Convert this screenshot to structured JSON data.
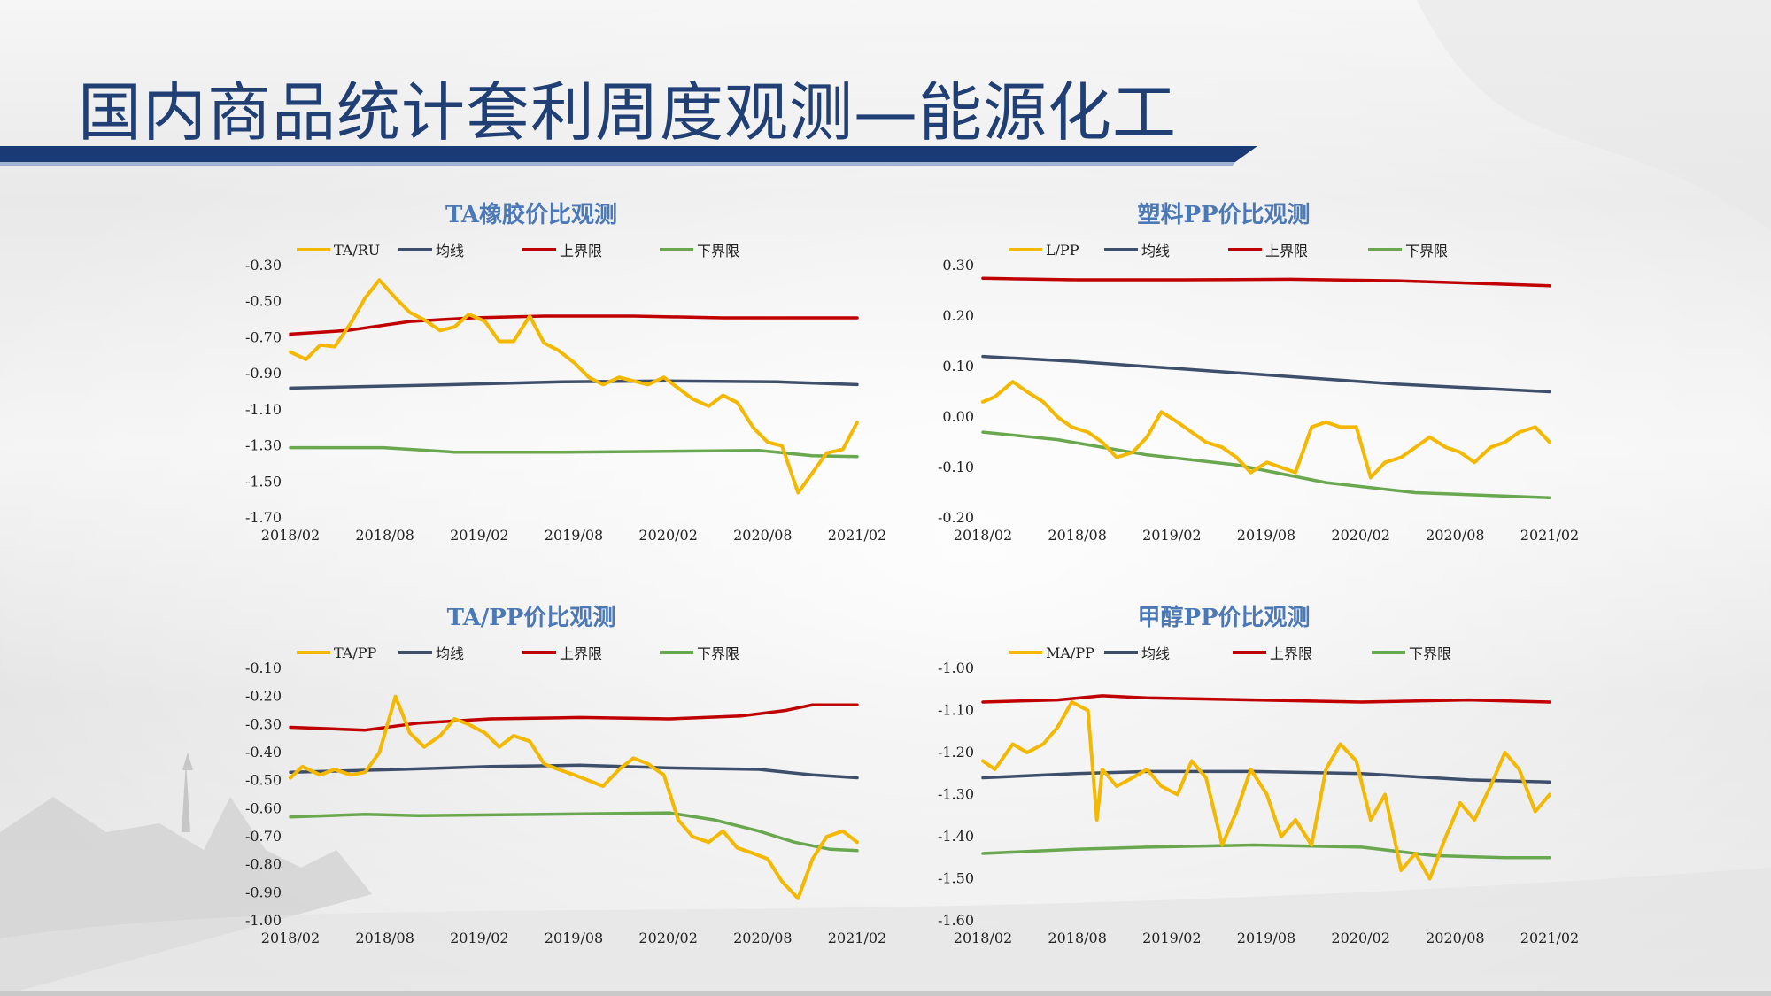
{
  "page": {
    "title": "国内商品统计套利周度观测—能源化工",
    "colors": {
      "title": "#1f3f75",
      "band": "#1a3a75",
      "accent_stripe": "#9fb4d2"
    }
  },
  "legend_colors": {
    "ratio": "#f5b800",
    "mean": "#3d4f6b",
    "upper": "#c00000",
    "lower": "#6aa84f"
  },
  "chart_data": [
    {
      "type": "line",
      "title": "TA橡胶价比观测",
      "x_ticks": [
        "2018/02",
        "2018/08",
        "2019/02",
        "2019/08",
        "2020/02",
        "2020/08",
        "2021/02"
      ],
      "y_ticks": [
        "-0.30",
        "-0.50",
        "-0.70",
        "-0.90",
        "-1.10",
        "-1.30",
        "-1.50",
        "-1.70"
      ],
      "ylim": [
        -1.7,
        -0.3
      ],
      "xlim": [
        2018.083,
        2021.25
      ],
      "series": [
        {
          "name": "TA/RU",
          "role": "ratio",
          "x": [
            2018.083,
            2018.17,
            2018.25,
            2018.33,
            2018.42,
            2018.5,
            2018.58,
            2018.67,
            2018.75,
            2018.83,
            2018.92,
            2019.0,
            2019.08,
            2019.17,
            2019.25,
            2019.33,
            2019.42,
            2019.5,
            2019.58,
            2019.67,
            2019.75,
            2019.83,
            2019.92,
            2020.0,
            2020.08,
            2020.17,
            2020.25,
            2020.33,
            2020.42,
            2020.5,
            2020.58,
            2020.67,
            2020.75,
            2020.83,
            2020.92,
            2021.0,
            2021.08,
            2021.17,
            2021.25
          ],
          "values": [
            -0.78,
            -0.82,
            -0.74,
            -0.75,
            -0.62,
            -0.48,
            -0.38,
            -0.48,
            -0.56,
            -0.6,
            -0.66,
            -0.64,
            -0.57,
            -0.61,
            -0.72,
            -0.72,
            -0.58,
            -0.73,
            -0.77,
            -0.84,
            -0.92,
            -0.96,
            -0.92,
            -0.94,
            -0.96,
            -0.92,
            -0.98,
            -1.04,
            -1.08,
            -1.02,
            -1.06,
            -1.2,
            -1.28,
            -1.3,
            -1.56,
            -1.45,
            -1.34,
            -1.32,
            -1.17
          ]
        },
        {
          "name": "均线",
          "role": "mean",
          "x": [
            2018.083,
            2019.0,
            2019.6,
            2020.2,
            2020.8,
            2021.25
          ],
          "values": [
            -0.98,
            -0.96,
            -0.945,
            -0.94,
            -0.945,
            -0.96
          ]
        },
        {
          "name": "上界限",
          "role": "upper",
          "x": [
            2018.083,
            2018.4,
            2018.75,
            2019.1,
            2019.5,
            2020.0,
            2020.5,
            2021.25
          ],
          "values": [
            -0.68,
            -0.66,
            -0.61,
            -0.59,
            -0.58,
            -0.58,
            -0.59,
            -0.59
          ]
        },
        {
          "name": "下界限",
          "role": "lower",
          "x": [
            2018.083,
            2018.6,
            2019.0,
            2019.6,
            2020.2,
            2020.7,
            2021.0,
            2021.25
          ],
          "values": [
            -1.31,
            -1.31,
            -1.335,
            -1.335,
            -1.33,
            -1.325,
            -1.355,
            -1.36
          ]
        }
      ]
    },
    {
      "type": "line",
      "title": "塑料PP价比观测",
      "x_ticks": [
        "2018/02",
        "2018/08",
        "2019/02",
        "2019/08",
        "2020/02",
        "2020/08",
        "2021/02"
      ],
      "y_ticks": [
        "0.30",
        "0.20",
        "0.10",
        "0.00",
        "-0.10",
        "-0.20"
      ],
      "ylim": [
        -0.2,
        0.3
      ],
      "xlim": [
        2018.083,
        2021.25
      ],
      "series": [
        {
          "name": "L/PP",
          "role": "ratio",
          "x": [
            2018.083,
            2018.15,
            2018.25,
            2018.33,
            2018.42,
            2018.5,
            2018.58,
            2018.67,
            2018.75,
            2018.83,
            2018.92,
            2019.0,
            2019.08,
            2019.17,
            2019.25,
            2019.33,
            2019.42,
            2019.5,
            2019.58,
            2019.67,
            2019.75,
            2019.83,
            2019.92,
            2020.0,
            2020.08,
            2020.17,
            2020.25,
            2020.33,
            2020.42,
            2020.5,
            2020.58,
            2020.67,
            2020.75,
            2020.83,
            2020.92,
            2021.0,
            2021.08,
            2021.17,
            2021.25
          ],
          "values": [
            0.03,
            0.04,
            0.07,
            0.05,
            0.03,
            0.0,
            -0.02,
            -0.03,
            -0.05,
            -0.08,
            -0.07,
            -0.04,
            0.01,
            -0.01,
            -0.03,
            -0.05,
            -0.06,
            -0.08,
            -0.11,
            -0.09,
            -0.1,
            -0.11,
            -0.02,
            -0.01,
            -0.02,
            -0.02,
            -0.12,
            -0.09,
            -0.08,
            -0.06,
            -0.04,
            -0.06,
            -0.07,
            -0.09,
            -0.06,
            -0.05,
            -0.03,
            -0.02,
            -0.05
          ]
        },
        {
          "name": "均线",
          "role": "mean",
          "x": [
            2018.083,
            2018.6,
            2019.2,
            2019.8,
            2020.4,
            2021.25
          ],
          "values": [
            0.12,
            0.11,
            0.095,
            0.08,
            0.065,
            0.05
          ]
        },
        {
          "name": "上界限",
          "role": "upper",
          "x": [
            2018.083,
            2018.6,
            2019.2,
            2019.8,
            2020.4,
            2021.25
          ],
          "values": [
            0.275,
            0.272,
            0.272,
            0.273,
            0.27,
            0.26
          ]
        },
        {
          "name": "下界限",
          "role": "lower",
          "x": [
            2018.083,
            2018.5,
            2019.0,
            2019.5,
            2020.0,
            2020.5,
            2021.25
          ],
          "values": [
            -0.03,
            -0.045,
            -0.075,
            -0.095,
            -0.13,
            -0.15,
            -0.16
          ]
        }
      ]
    },
    {
      "type": "line",
      "title": "TA/PP价比观测",
      "x_ticks": [
        "2018/02",
        "2018/08",
        "2019/02",
        "2019/08",
        "2020/02",
        "2020/08",
        "2021/02"
      ],
      "y_ticks": [
        "-0.10",
        "-0.20",
        "-0.30",
        "-0.40",
        "-0.50",
        "-0.60",
        "-0.70",
        "-0.80",
        "-0.90",
        "-1.00"
      ],
      "ylim": [
        -1.0,
        -0.1
      ],
      "xlim": [
        2018.083,
        2021.25
      ],
      "series": [
        {
          "name": "TA/PP",
          "role": "ratio",
          "x": [
            2018.083,
            2018.15,
            2018.25,
            2018.33,
            2018.42,
            2018.5,
            2018.58,
            2018.67,
            2018.75,
            2018.83,
            2018.92,
            2019.0,
            2019.08,
            2019.17,
            2019.25,
            2019.33,
            2019.42,
            2019.5,
            2019.58,
            2019.67,
            2019.75,
            2019.83,
            2019.92,
            2020.0,
            2020.08,
            2020.17,
            2020.25,
            2020.33,
            2020.42,
            2020.5,
            2020.58,
            2020.67,
            2020.75,
            2020.83,
            2020.92,
            2021.0,
            2021.08,
            2021.17,
            2021.25
          ],
          "values": [
            -0.49,
            -0.45,
            -0.48,
            -0.46,
            -0.48,
            -0.47,
            -0.4,
            -0.2,
            -0.33,
            -0.38,
            -0.34,
            -0.28,
            -0.3,
            -0.33,
            -0.38,
            -0.34,
            -0.36,
            -0.44,
            -0.46,
            -0.48,
            -0.5,
            -0.52,
            -0.46,
            -0.42,
            -0.44,
            -0.48,
            -0.64,
            -0.7,
            -0.72,
            -0.68,
            -0.74,
            -0.76,
            -0.78,
            -0.86,
            -0.92,
            -0.78,
            -0.7,
            -0.68,
            -0.72
          ]
        },
        {
          "name": "均线",
          "role": "mean",
          "x": [
            2018.083,
            2018.7,
            2019.2,
            2019.7,
            2020.2,
            2020.7,
            2021.0,
            2021.25
          ],
          "values": [
            -0.47,
            -0.46,
            -0.45,
            -0.445,
            -0.455,
            -0.46,
            -0.48,
            -0.49
          ]
        },
        {
          "name": "上界限",
          "role": "upper",
          "x": [
            2018.083,
            2018.5,
            2018.8,
            2019.2,
            2019.7,
            2020.2,
            2020.6,
            2020.85,
            2021.0,
            2021.25
          ],
          "values": [
            -0.31,
            -0.32,
            -0.295,
            -0.28,
            -0.275,
            -0.28,
            -0.27,
            -0.25,
            -0.23,
            -0.23
          ]
        },
        {
          "name": "下界限",
          "role": "lower",
          "x": [
            2018.083,
            2018.5,
            2018.8,
            2019.5,
            2020.2,
            2020.45,
            2020.7,
            2020.9,
            2021.1,
            2021.25
          ],
          "values": [
            -0.63,
            -0.62,
            -0.625,
            -0.62,
            -0.615,
            -0.64,
            -0.68,
            -0.72,
            -0.745,
            -0.75
          ]
        }
      ]
    },
    {
      "type": "line",
      "title": "甲醇PP价比观测",
      "x_ticks": [
        "2018/02",
        "2018/08",
        "2019/02",
        "2019/08",
        "2020/02",
        "2020/08",
        "2021/02"
      ],
      "y_ticks": [
        "-1.00",
        "-1.10",
        "-1.20",
        "-1.30",
        "-1.40",
        "-1.50",
        "-1.60"
      ],
      "ylim": [
        -1.6,
        -1.0
      ],
      "xlim": [
        2018.083,
        2021.25
      ],
      "series": [
        {
          "name": "MA/PP",
          "role": "ratio",
          "x": [
            2018.083,
            2018.15,
            2018.25,
            2018.33,
            2018.42,
            2018.5,
            2018.58,
            2018.67,
            2018.72,
            2018.75,
            2018.83,
            2018.92,
            2019.0,
            2019.08,
            2019.17,
            2019.25,
            2019.33,
            2019.42,
            2019.5,
            2019.58,
            2019.67,
            2019.75,
            2019.83,
            2019.92,
            2020.0,
            2020.08,
            2020.17,
            2020.25,
            2020.33,
            2020.42,
            2020.5,
            2020.58,
            2020.67,
            2020.75,
            2020.83,
            2020.92,
            2021.0,
            2021.08,
            2021.17,
            2021.25
          ],
          "values": [
            -1.22,
            -1.24,
            -1.18,
            -1.2,
            -1.18,
            -1.14,
            -1.08,
            -1.1,
            -1.36,
            -1.24,
            -1.28,
            -1.26,
            -1.24,
            -1.28,
            -1.3,
            -1.22,
            -1.26,
            -1.42,
            -1.34,
            -1.24,
            -1.3,
            -1.4,
            -1.36,
            -1.42,
            -1.24,
            -1.18,
            -1.22,
            -1.36,
            -1.3,
            -1.48,
            -1.44,
            -1.5,
            -1.4,
            -1.32,
            -1.36,
            -1.28,
            -1.2,
            -1.24,
            -1.34,
            -1.3
          ]
        },
        {
          "name": "均线",
          "role": "mean",
          "x": [
            2018.083,
            2018.6,
            2019.0,
            2019.6,
            2020.2,
            2020.8,
            2021.25
          ],
          "values": [
            -1.26,
            -1.25,
            -1.245,
            -1.245,
            -1.25,
            -1.265,
            -1.27
          ]
        },
        {
          "name": "上界限",
          "role": "upper",
          "x": [
            2018.083,
            2018.5,
            2018.75,
            2019.0,
            2019.6,
            2020.2,
            2020.8,
            2021.25
          ],
          "values": [
            -1.08,
            -1.075,
            -1.065,
            -1.07,
            -1.075,
            -1.08,
            -1.075,
            -1.08
          ]
        },
        {
          "name": "下界限",
          "role": "lower",
          "x": [
            2018.083,
            2018.6,
            2019.0,
            2019.6,
            2020.2,
            2020.6,
            2021.0,
            2021.25
          ],
          "values": [
            -1.44,
            -1.43,
            -1.425,
            -1.42,
            -1.425,
            -1.445,
            -1.45,
            -1.45
          ]
        }
      ]
    }
  ]
}
